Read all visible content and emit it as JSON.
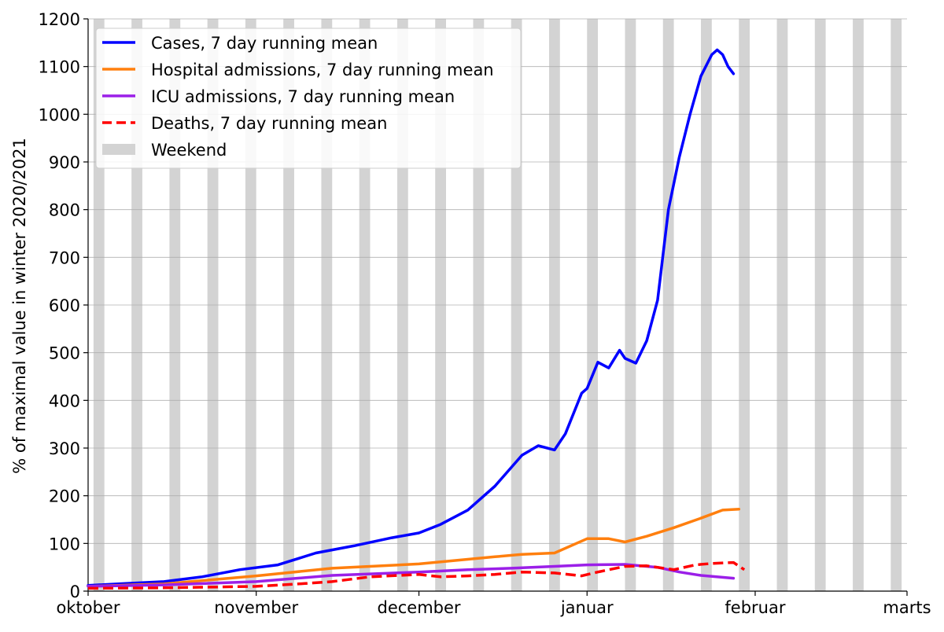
{
  "chart_data": {
    "type": "line",
    "ylabel": "% of maximal value in winter 2020/2021",
    "xlabel": "",
    "title": "",
    "ylim": [
      0,
      1200
    ],
    "xlim": [
      "2021-10-01",
      "2022-03-01"
    ],
    "grid": "horizontal",
    "legend_position": "top-left",
    "x_ticks": [
      {
        "date": "2021-10-01",
        "label": "oktober"
      },
      {
        "date": "2021-11-01",
        "label": "november"
      },
      {
        "date": "2021-12-01",
        "label": "december"
      },
      {
        "date": "2022-01-01",
        "label": "januar"
      },
      {
        "date": "2022-02-01",
        "label": "februar"
      },
      {
        "date": "2022-03-01",
        "label": "marts"
      }
    ],
    "y_ticks": [
      0,
      100,
      200,
      300,
      400,
      500,
      600,
      700,
      800,
      900,
      1000,
      1100,
      1200
    ],
    "weekends": [
      "2021-10-02",
      "2021-10-09",
      "2021-10-16",
      "2021-10-23",
      "2021-10-30",
      "2021-11-06",
      "2021-11-13",
      "2021-11-20",
      "2021-11-27",
      "2021-12-04",
      "2021-12-11",
      "2021-12-18",
      "2021-12-25",
      "2022-01-01",
      "2022-01-08",
      "2022-01-15",
      "2022-01-22",
      "2022-01-29",
      "2022-02-05",
      "2022-02-12",
      "2022-02-19",
      "2022-02-26"
    ],
    "weekend_color": "#d3d3d3",
    "series": [
      {
        "name": "Cases, 7 day running mean",
        "color": "#0000ff",
        "dash": false,
        "points": [
          [
            "2021-10-01",
            12
          ],
          [
            "2021-10-08",
            16
          ],
          [
            "2021-10-15",
            20
          ],
          [
            "2021-10-22",
            30
          ],
          [
            "2021-10-29",
            45
          ],
          [
            "2021-11-05",
            55
          ],
          [
            "2021-11-12",
            80
          ],
          [
            "2021-11-19",
            95
          ],
          [
            "2021-11-26",
            112
          ],
          [
            "2021-12-01",
            122
          ],
          [
            "2021-12-05",
            140
          ],
          [
            "2021-12-10",
            170
          ],
          [
            "2021-12-15",
            220
          ],
          [
            "2021-12-20",
            285
          ],
          [
            "2021-12-23",
            305
          ],
          [
            "2021-12-26",
            296
          ],
          [
            "2021-12-28",
            330
          ],
          [
            "2021-12-31",
            415
          ],
          [
            "2022-01-01",
            425
          ],
          [
            "2022-01-03",
            480
          ],
          [
            "2022-01-05",
            468
          ],
          [
            "2022-01-07",
            505
          ],
          [
            "2022-01-08",
            488
          ],
          [
            "2022-01-10",
            478
          ],
          [
            "2022-01-12",
            525
          ],
          [
            "2022-01-14",
            610
          ],
          [
            "2022-01-16",
            800
          ],
          [
            "2022-01-18",
            910
          ],
          [
            "2022-01-20",
            1000
          ],
          [
            "2022-01-22",
            1080
          ],
          [
            "2022-01-24",
            1125
          ],
          [
            "2022-01-25",
            1135
          ],
          [
            "2022-01-26",
            1125
          ],
          [
            "2022-01-27",
            1100
          ],
          [
            "2022-01-28",
            1085
          ]
        ]
      },
      {
        "name": "Hospital admissions, 7 day running mean",
        "color": "#ff7f0e",
        "dash": false,
        "points": [
          [
            "2021-10-01",
            10
          ],
          [
            "2021-10-15",
            15
          ],
          [
            "2021-11-01",
            32
          ],
          [
            "2021-11-15",
            48
          ],
          [
            "2021-12-01",
            57
          ],
          [
            "2021-12-15",
            72
          ],
          [
            "2021-12-20",
            77
          ],
          [
            "2021-12-26",
            80
          ],
          [
            "2022-01-01",
            110
          ],
          [
            "2022-01-05",
            110
          ],
          [
            "2022-01-08",
            103
          ],
          [
            "2022-01-12",
            115
          ],
          [
            "2022-01-17",
            133
          ],
          [
            "2022-01-22",
            153
          ],
          [
            "2022-01-26",
            170
          ],
          [
            "2022-01-29",
            172
          ]
        ]
      },
      {
        "name": "ICU admissions, 7 day running mean",
        "color": "#9b1fe8",
        "dash": false,
        "points": [
          [
            "2021-10-01",
            10
          ],
          [
            "2021-10-15",
            13
          ],
          [
            "2021-11-01",
            20
          ],
          [
            "2021-11-15",
            33
          ],
          [
            "2021-12-01",
            40
          ],
          [
            "2021-12-10",
            45
          ],
          [
            "2021-12-18",
            48
          ],
          [
            "2021-12-26",
            52
          ],
          [
            "2022-01-01",
            55
          ],
          [
            "2022-01-08",
            56
          ],
          [
            "2022-01-14",
            50
          ],
          [
            "2022-01-18",
            40
          ],
          [
            "2022-01-22",
            33
          ],
          [
            "2022-01-28",
            27
          ]
        ]
      },
      {
        "name": "Deaths, 7 day running mean",
        "color": "#ff0000",
        "dash": true,
        "points": [
          [
            "2021-10-01",
            6
          ],
          [
            "2021-10-15",
            7
          ],
          [
            "2021-11-01",
            10
          ],
          [
            "2021-11-10",
            16
          ],
          [
            "2021-11-15",
            20
          ],
          [
            "2021-11-22",
            30
          ],
          [
            "2021-12-01",
            35
          ],
          [
            "2021-12-05",
            30
          ],
          [
            "2021-12-10",
            32
          ],
          [
            "2021-12-15",
            35
          ],
          [
            "2021-12-20",
            40
          ],
          [
            "2021-12-26",
            38
          ],
          [
            "2021-12-31",
            32
          ],
          [
            "2022-01-03",
            40
          ],
          [
            "2022-01-08",
            52
          ],
          [
            "2022-01-12",
            53
          ],
          [
            "2022-01-17",
            45
          ],
          [
            "2022-01-21",
            55
          ],
          [
            "2022-01-24",
            58
          ],
          [
            "2022-01-28",
            60
          ],
          [
            "2022-01-30",
            45
          ]
        ]
      }
    ],
    "legend": [
      {
        "label": "Cases, 7 day running mean",
        "color": "#0000ff",
        "kind": "line"
      },
      {
        "label": "Hospital admissions, 7 day running mean",
        "color": "#ff7f0e",
        "kind": "line"
      },
      {
        "label": "ICU admissions, 7 day running mean",
        "color": "#9b1fe8",
        "kind": "line"
      },
      {
        "label": "Deaths, 7 day running mean",
        "color": "#ff0000",
        "kind": "dashed"
      },
      {
        "label": "Weekend",
        "color": "#d3d3d3",
        "kind": "patch"
      }
    ]
  }
}
